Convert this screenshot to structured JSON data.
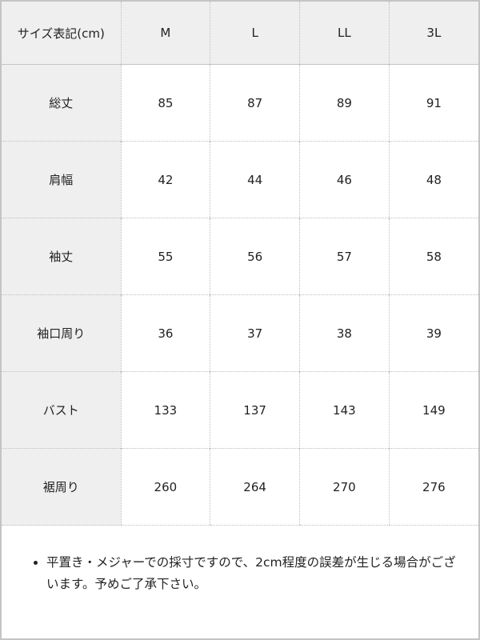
{
  "table": {
    "header": [
      "サイズ表記(cm)",
      "M",
      "L",
      "LL",
      "3L"
    ],
    "rows": [
      {
        "label": "総丈",
        "values": [
          "85",
          "87",
          "89",
          "91"
        ]
      },
      {
        "label": "肩幅",
        "values": [
          "42",
          "44",
          "46",
          "48"
        ]
      },
      {
        "label": "袖丈",
        "values": [
          "55",
          "56",
          "57",
          "58"
        ]
      },
      {
        "label": "袖口周り",
        "values": [
          "36",
          "37",
          "38",
          "39"
        ]
      },
      {
        "label": "バスト",
        "values": [
          "133",
          "137",
          "143",
          "149"
        ]
      },
      {
        "label": "裾周り",
        "values": [
          "260",
          "264",
          "270",
          "276"
        ]
      }
    ]
  },
  "note": "平置き・メジャーでの採寸ですので、2cm程度の誤差が生じる場合がございます。予めご了承下さい。"
}
